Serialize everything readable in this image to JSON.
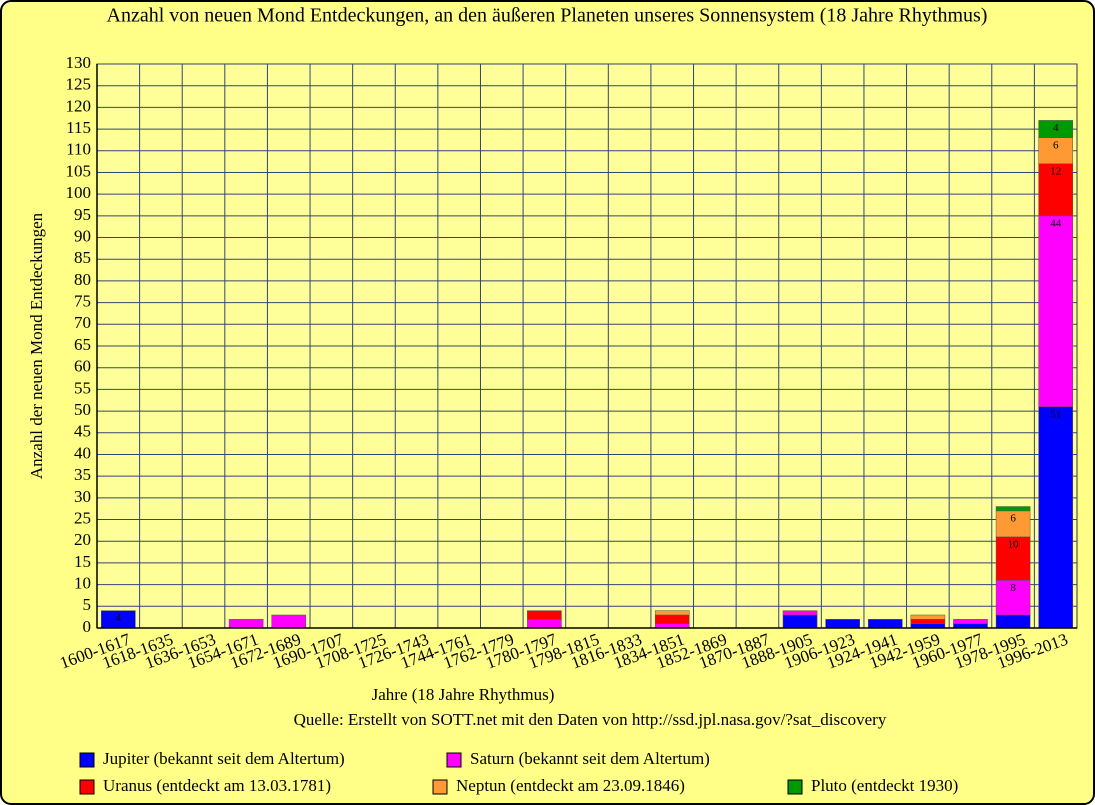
{
  "chart_data": {
    "type": "stacked-bar",
    "title": "Anzahl von neuen Mond Entdeckungen, an den äußeren Planeten unseres Sonnensystem (18 Jahre Rhythmus)",
    "x_label": "Jahre (18 Jahre Rhythmus)",
    "y_label": "Anzahl der neuen Mond Entdeckungen",
    "source": "Quelle: Erstellt von SOTT.net mit den Daten von http://ssd.jpl.nasa.gov/?sat_discovery",
    "categories": [
      "1600-1617",
      "1618-1635",
      "1636-1653",
      "1654-1671",
      "1672-1689",
      "1690-1707",
      "1708-1725",
      "1726-1743",
      "1744-1761",
      "1762-1779",
      "1780-1797",
      "1798-1815",
      "1816-1833",
      "1834-1851",
      "1852-1869",
      "1870-1887",
      "1888-1905",
      "1906-1923",
      "1924-1941",
      "1942-1959",
      "1960-1977",
      "1978-1995",
      "1996-2013"
    ],
    "series": [
      {
        "name": "Jupiter (bekannt seit dem Altertum)",
        "color": "#0000ff",
        "values": [
          4,
          0,
          0,
          0,
          0,
          0,
          0,
          0,
          0,
          0,
          0,
          0,
          0,
          0,
          0,
          0,
          3,
          2,
          2,
          1,
          1,
          3,
          51
        ]
      },
      {
        "name": "Saturn (bekannt seit dem Altertum)",
        "color": "#ff00ff",
        "values": [
          0,
          0,
          0,
          2,
          3,
          0,
          0,
          0,
          0,
          0,
          2,
          0,
          0,
          1,
          0,
          0,
          1,
          0,
          0,
          0,
          1,
          8,
          44
        ]
      },
      {
        "name": "Uranus (entdeckt am 13.03.1781)",
        "color": "#ff0000",
        "values": [
          0,
          0,
          0,
          0,
          0,
          0,
          0,
          0,
          0,
          0,
          2,
          0,
          0,
          2,
          0,
          0,
          0,
          0,
          0,
          1,
          0,
          10,
          12
        ]
      },
      {
        "name": "Neptun (entdeckt am 23.09.1846)",
        "color": "#ff9933",
        "values": [
          0,
          0,
          0,
          0,
          0,
          0,
          0,
          0,
          0,
          0,
          0,
          0,
          0,
          1,
          0,
          0,
          0,
          0,
          0,
          1,
          0,
          6,
          6
        ]
      },
      {
        "name": "Pluto (entdeckt 1930)",
        "color": "#009900",
        "values": [
          0,
          0,
          0,
          0,
          0,
          0,
          0,
          0,
          0,
          0,
          0,
          0,
          0,
          0,
          0,
          0,
          0,
          0,
          0,
          0,
          0,
          1,
          4
        ]
      }
    ],
    "ylim": [
      0,
      130
    ],
    "yticks": [
      0,
      5,
      10,
      15,
      20,
      25,
      30,
      35,
      40,
      45,
      50,
      55,
      60,
      65,
      70,
      75,
      80,
      85,
      90,
      95,
      100,
      105,
      110,
      115,
      120,
      125,
      130
    ],
    "grid": true
  }
}
